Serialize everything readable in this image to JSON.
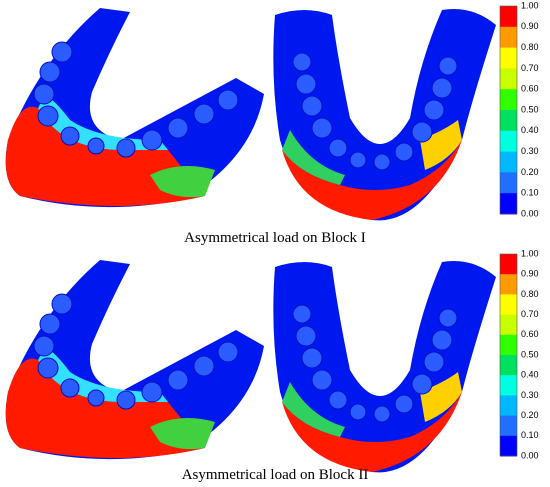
{
  "panels": [
    {
      "caption": "Asymmetrical load on Block I",
      "colorbar": {
        "ticks": [
          "1.00",
          "0.90",
          "0.80",
          "0.70",
          "0.60",
          "0.50",
          "0.40",
          "0.30",
          "0.20",
          "0.10",
          "0.00"
        ]
      }
    },
    {
      "caption": "Asymmetrical load on Block II",
      "colorbar": {
        "ticks": [
          "1.00",
          "0.90",
          "0.80",
          "0.70",
          "0.60",
          "0.50",
          "0.40",
          "0.30",
          "0.20",
          "0.10",
          "0.00"
        ]
      }
    }
  ]
}
